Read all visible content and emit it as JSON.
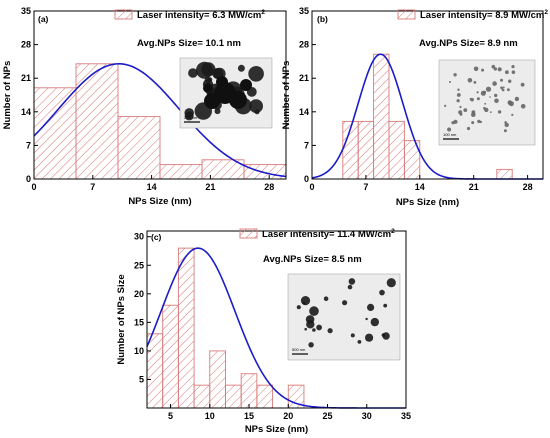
{
  "chart_data": [
    {
      "type": "bar",
      "panel_label": "(a)",
      "xlabel": "NPs Size (nm)",
      "ylabel": "Number of NPs",
      "xlim": [
        0,
        30
      ],
      "ylim": [
        0,
        35
      ],
      "xticks": [
        0,
        7,
        14,
        21,
        28
      ],
      "yticks": [
        0,
        7,
        14,
        21,
        28,
        35
      ],
      "bins": [
        {
          "x0": 0,
          "x1": 5,
          "count": 19
        },
        {
          "x0": 5,
          "x1": 10,
          "count": 24
        },
        {
          "x0": 10,
          "x1": 15,
          "count": 13
        },
        {
          "x0": 15,
          "x1": 20,
          "count": 3
        },
        {
          "x0": 20,
          "x1": 25,
          "count": 4
        },
        {
          "x0": 25,
          "x1": 30,
          "count": 3
        }
      ],
      "fit": {
        "type": "gaussian",
        "mean": 10.1,
        "sigma": 7.2,
        "peak": 24
      },
      "legend": {
        "label": "Laser intensity= 6.3 MW/cm",
        "superscript": "2",
        "position": "top-right"
      },
      "annotation": "Avg.NPs Size= 10.1 nm",
      "colors": {
        "bar": "#d87a7a",
        "hatch": "#d87a7a",
        "fit": "#1c1cc8"
      }
    },
    {
      "type": "bar",
      "panel_label": "(b)",
      "xlabel": "NPs Size (nm)",
      "ylabel": "Number of NPs",
      "xlim": [
        0,
        30
      ],
      "ylim": [
        0,
        35
      ],
      "xticks": [
        0,
        7,
        14,
        21,
        28
      ],
      "yticks": [
        0,
        7,
        14,
        21,
        28,
        35
      ],
      "bins": [
        {
          "x0": 4,
          "x1": 6,
          "count": 12
        },
        {
          "x0": 6,
          "x1": 8,
          "count": 12
        },
        {
          "x0": 8,
          "x1": 10,
          "count": 26
        },
        {
          "x0": 10,
          "x1": 12,
          "count": 12
        },
        {
          "x0": 12,
          "x1": 14,
          "count": 8
        },
        {
          "x0": 24,
          "x1": 26,
          "count": 2
        }
      ],
      "fit": {
        "type": "gaussian",
        "mean": 8.9,
        "sigma": 2.9,
        "peak": 26
      },
      "legend": {
        "label": "Laser intensity= 8.9 MW/cm",
        "superscript": "2",
        "position": "top-right"
      },
      "annotation": "Avg.NPs Size= 8.9 nm",
      "colors": {
        "bar": "#d87a7a",
        "hatch": "#d87a7a",
        "fit": "#1c1cc8"
      }
    },
    {
      "type": "bar",
      "panel_label": "(c)",
      "xlabel": "NPs Size (nm)",
      "ylabel": "Number of NPs Size",
      "xlim": [
        2,
        35
      ],
      "ylim": [
        0,
        31
      ],
      "xticks": [
        5,
        10,
        15,
        20,
        25,
        30,
        35
      ],
      "yticks": [
        5,
        10,
        15,
        20,
        25,
        30
      ],
      "bins": [
        {
          "x0": 2,
          "x1": 4,
          "count": 13
        },
        {
          "x0": 4,
          "x1": 6,
          "count": 18
        },
        {
          "x0": 6,
          "x1": 8,
          "count": 28
        },
        {
          "x0": 8,
          "x1": 10,
          "count": 4
        },
        {
          "x0": 10,
          "x1": 12,
          "count": 10
        },
        {
          "x0": 12,
          "x1": 14,
          "count": 4
        },
        {
          "x0": 14,
          "x1": 16,
          "count": 6
        },
        {
          "x0": 16,
          "x1": 18,
          "count": 4
        },
        {
          "x0": 20,
          "x1": 22,
          "count": 4
        }
      ],
      "fit": {
        "type": "gaussian",
        "mean": 8.5,
        "sigma": 4.7,
        "peak": 28
      },
      "legend": {
        "label": "Laser intensity= 11.4 MW/cm",
        "superscript": "2",
        "position": "top-right"
      },
      "annotation": "Avg.NPs Size= 8.5 nm",
      "colors": {
        "bar": "#d87a7a",
        "hatch": "#d87a7a",
        "fit": "#1c1cc8"
      }
    }
  ],
  "insets": [
    {
      "panel": "(a)",
      "icon": "tem-micrograph-icon",
      "scale_label": "200 nm"
    },
    {
      "panel": "(b)",
      "icon": "tem-micrograph-icon",
      "scale_label": "100 nm"
    },
    {
      "panel": "(c)",
      "icon": "tem-micrograph-icon",
      "scale_label": "500 nm"
    }
  ]
}
